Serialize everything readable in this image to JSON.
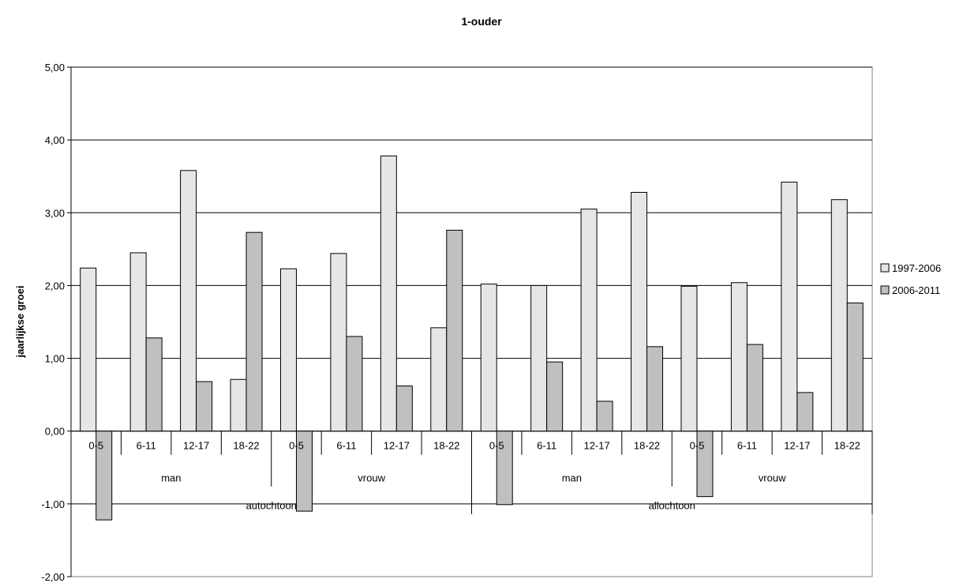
{
  "chart_data": {
    "type": "bar",
    "title": "1-ouder",
    "ylabel": "jaarlijkse groei",
    "xlabel": "",
    "ylim": [
      -2,
      5
    ],
    "yticks": [
      "-2,00",
      "-1,00",
      "0,00",
      "1,00",
      "2,00",
      "3,00",
      "4,00",
      "5,00"
    ],
    "categories": [
      "0-5",
      "6-11",
      "12-17",
      "18-22",
      "0-5",
      "6-11",
      "12-17",
      "18-22",
      "0-5",
      "6-11",
      "12-17",
      "18-22",
      "0-5",
      "6-11",
      "12-17",
      "18-22"
    ],
    "group_level1": [
      "man",
      "vrouw",
      "man",
      "vrouw"
    ],
    "group_level2": [
      "autochtoon",
      "allochtoon"
    ],
    "series": [
      {
        "name": "1997-2006",
        "color": "#e6e6e6",
        "values": [
          2.24,
          2.45,
          3.58,
          0.71,
          2.23,
          2.44,
          3.78,
          1.42,
          2.02,
          2.0,
          3.05,
          3.28,
          1.99,
          2.04,
          3.42,
          3.18
        ]
      },
      {
        "name": "2006-2011",
        "color": "#c0c0c0",
        "values": [
          -1.22,
          1.28,
          0.68,
          2.73,
          -1.1,
          1.3,
          0.62,
          2.76,
          -1.01,
          0.95,
          0.41,
          1.16,
          -0.9,
          1.19,
          0.53,
          1.76
        ]
      }
    ],
    "grid": true,
    "legend": "right"
  }
}
